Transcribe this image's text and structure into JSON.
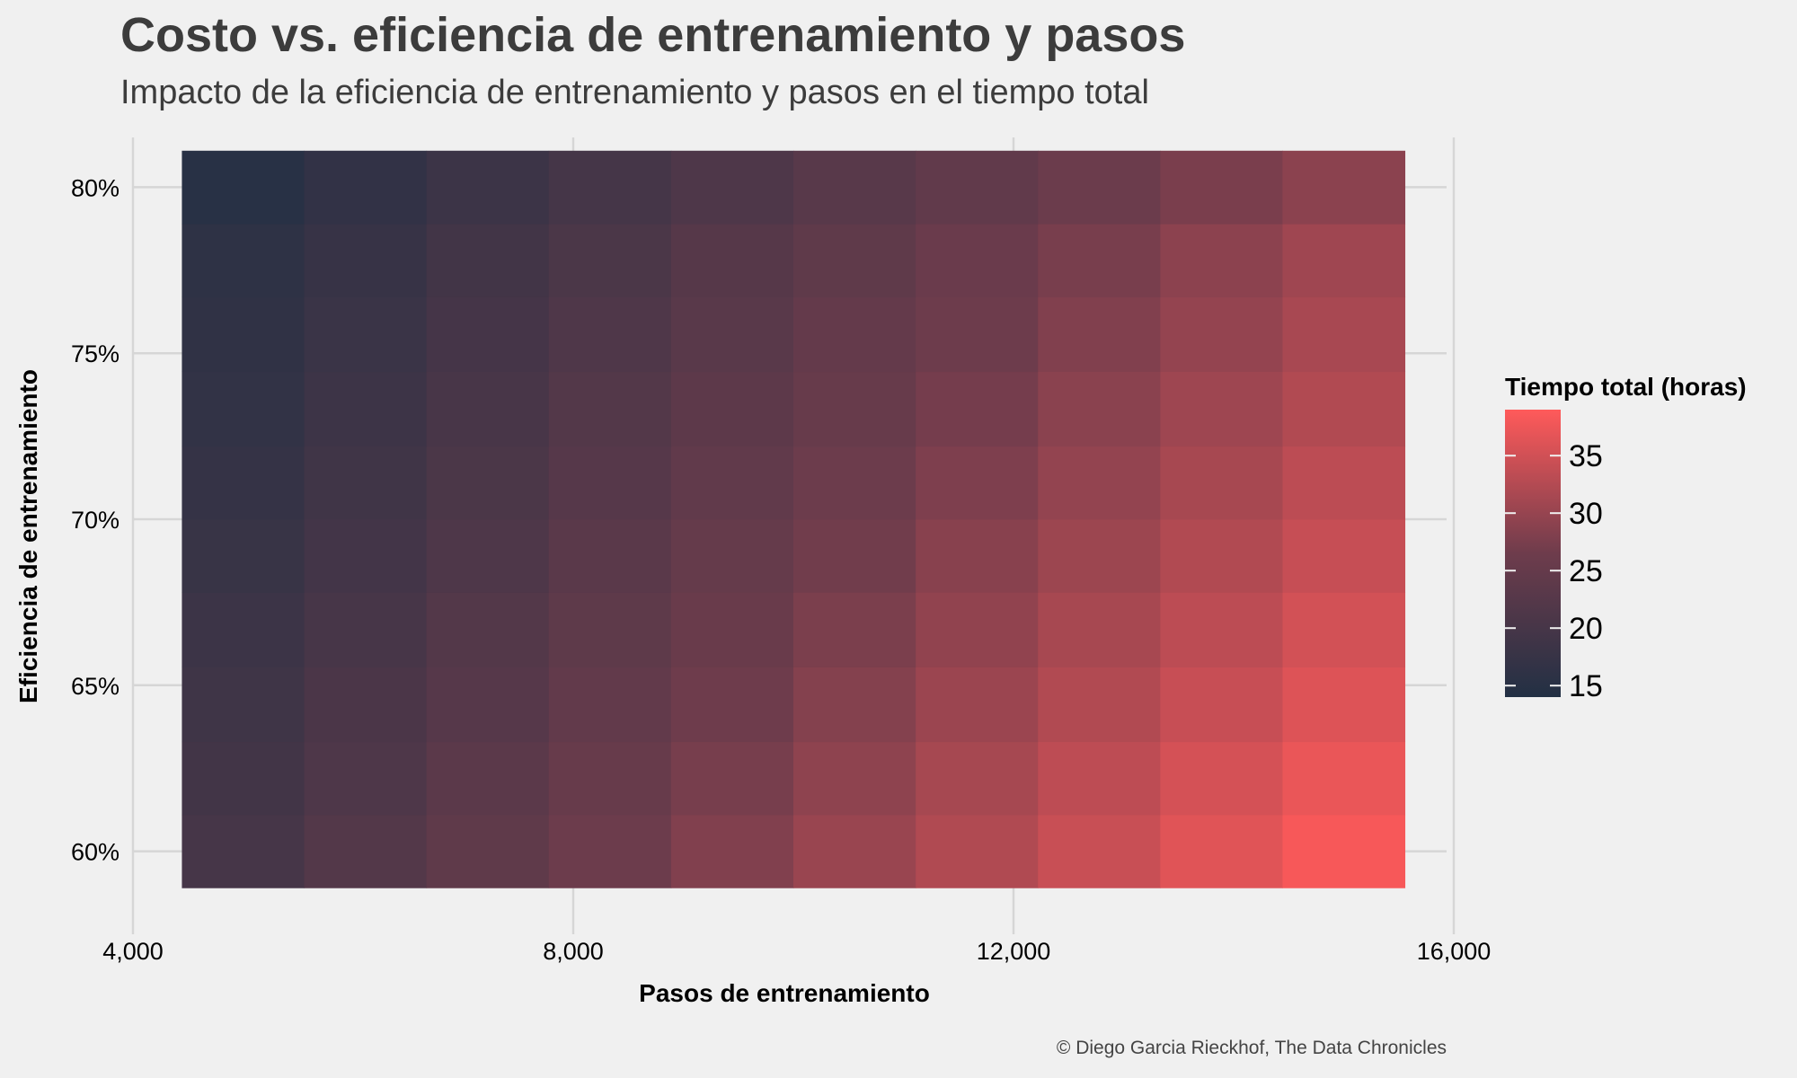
{
  "chart_data": {
    "type": "heatmap",
    "title": "Costo vs. eficiencia de entrenamiento y pasos",
    "subtitle": "Impacto de la eficiencia de entrenamiento y pasos en el tiempo total",
    "xlabel": "Pasos de entrenamiento",
    "ylabel": "Eficiencia de entrenamiento",
    "caption": "© Diego Garcia Rieckhof, The Data Chronicles",
    "xlim": [
      4000,
      16000
    ],
    "x_ticks": [
      4000,
      8000,
      12000,
      16000
    ],
    "x_tick_labels": [
      "4,000",
      "8,000",
      "12,000",
      "16,000"
    ],
    "ylim": [
      0.585,
      0.815
    ],
    "y_ticks": [
      0.6,
      0.65,
      0.7,
      0.75,
      0.8
    ],
    "y_tick_labels": [
      "60%",
      "65%",
      "70%",
      "75%",
      "80%"
    ],
    "x": [
      5000,
      6111,
      7222,
      8333,
      9444,
      10556,
      11667,
      12778,
      13889,
      15000
    ],
    "y": [
      0.6,
      0.622,
      0.644,
      0.667,
      0.689,
      0.711,
      0.733,
      0.756,
      0.778,
      0.8
    ],
    "z_formula_note": "",
    "values": [
      [
        20.0,
        22.0,
        24.1,
        26.1,
        28.1,
        30.2,
        32.2,
        34.3,
        36.3,
        38.3
      ],
      [
        19.3,
        21.3,
        23.3,
        25.3,
        27.3,
        29.3,
        31.3,
        33.3,
        35.3,
        37.2
      ],
      [
        18.8,
        20.7,
        22.6,
        24.6,
        26.5,
        28.4,
        30.4,
        32.3,
        34.2,
        36.1
      ],
      [
        18.2,
        20.1,
        22.0,
        23.9,
        25.7,
        27.6,
        29.5,
        31.4,
        33.2,
        35.1
      ],
      [
        17.7,
        19.5,
        21.3,
        23.2,
        25.0,
        26.8,
        28.7,
        30.5,
        32.3,
        34.1
      ],
      [
        17.2,
        19.0,
        20.8,
        22.6,
        24.3,
        26.1,
        27.9,
        29.7,
        31.4,
        33.2
      ],
      [
        16.7,
        18.5,
        20.2,
        22.0,
        23.7,
        25.4,
        27.1,
        28.9,
        30.6,
        32.3
      ],
      [
        16.3,
        18.0,
        19.7,
        21.4,
        23.1,
        24.8,
        26.4,
        28.1,
        29.8,
        31.5
      ],
      [
        15.9,
        17.5,
        19.2,
        20.8,
        22.5,
        24.1,
        25.8,
        27.4,
        29.1,
        30.7
      ],
      [
        15.0,
        16.6,
        18.2,
        19.8,
        21.3,
        22.9,
        24.4,
        26.0,
        27.5,
        29.0
      ]
    ],
    "legend": {
      "title": "Tiempo total (horas)",
      "placement": "right",
      "range": [
        14,
        39
      ],
      "ticks": [
        15,
        20,
        25,
        30,
        35
      ],
      "tick_labels": [
        "15",
        "20",
        "25",
        "30",
        "35"
      ],
      "low_color": "#223044",
      "mid_color": "#6e3c4c",
      "high_color": "#ff5a5a"
    },
    "grid": true,
    "colors": {
      "background": "#f0f0f0",
      "grid": "#d6d6d6",
      "text": "#000000",
      "title": "#3c3c3c"
    }
  }
}
